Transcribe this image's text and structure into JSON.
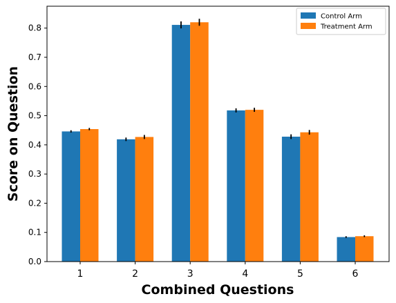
{
  "chart_data": {
    "type": "bar",
    "categories": [
      "1",
      "2",
      "3",
      "4",
      "5",
      "6"
    ],
    "series": [
      {
        "name": "Control Arm",
        "color": "#1f77b4",
        "values": [
          0.446,
          0.419,
          0.811,
          0.518,
          0.428,
          0.084
        ],
        "errors": [
          0.004,
          0.006,
          0.012,
          0.007,
          0.008,
          0.003
        ]
      },
      {
        "name": "Treatment Arm",
        "color": "#ff7f0e",
        "values": [
          0.454,
          0.427,
          0.82,
          0.52,
          0.443,
          0.087
        ],
        "errors": [
          0.004,
          0.007,
          0.012,
          0.007,
          0.008,
          0.003
        ]
      }
    ],
    "xlabel": "Combined Questions",
    "ylabel": "Score on Question",
    "ylim": [
      0,
      0.875
    ],
    "yticks": [
      "0.0",
      "0.1",
      "0.2",
      "0.3",
      "0.4",
      "0.5",
      "0.6",
      "0.7",
      "0.8"
    ],
    "grid": false,
    "legend_position": "top-right"
  }
}
